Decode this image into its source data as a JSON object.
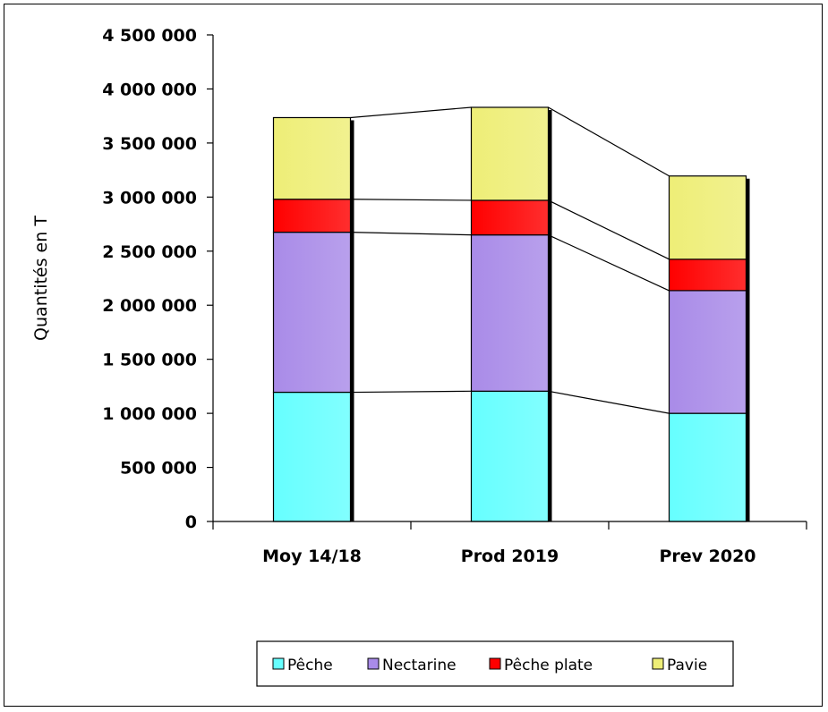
{
  "chart_data": {
    "type": "bar",
    "stacked": true,
    "categories": [
      "Moy 14/18",
      "Prod 2019",
      "Prev 2020"
    ],
    "series": [
      {
        "name": "Pêche",
        "color": "#66ffff",
        "values": [
          1195000,
          1205000,
          1000000
        ]
      },
      {
        "name": "Nectarine",
        "color": "#a98be8",
        "values": [
          1480000,
          1445000,
          1135000
        ]
      },
      {
        "name": "Pêche plate",
        "color": "#ff0000",
        "values": [
          305000,
          320000,
          290000
        ]
      },
      {
        "name": "Pavie",
        "color": "#eeee77",
        "values": [
          755000,
          860000,
          770000
        ]
      }
    ],
    "ylabel": "Quantités en T",
    "ylim": [
      0,
      4500000
    ],
    "yticks": [
      0,
      500000,
      1000000,
      1500000,
      2000000,
      2500000,
      3000000,
      3500000,
      4000000,
      4500000
    ],
    "ytick_labels": [
      "0",
      "500 000",
      "1 000 000",
      "1 500 000",
      "2 000 000",
      "2 500 000",
      "3 000 000",
      "3 500 000",
      "4 000 000",
      "4 500 000"
    ],
    "series_lines": true,
    "grid": false,
    "legend_position": "bottom"
  }
}
